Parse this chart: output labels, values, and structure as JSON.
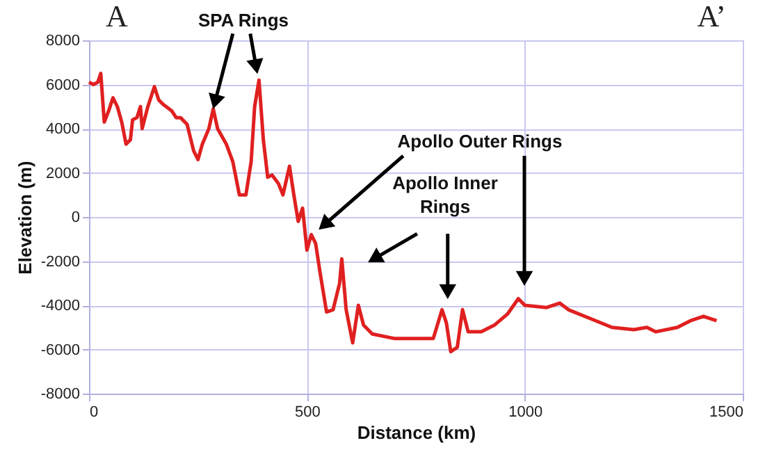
{
  "chart_data": {
    "type": "line",
    "xlabel": "Distance (km)",
    "ylabel": "Elevation (m)",
    "xlim": [
      0,
      1500
    ],
    "xticks": [
      0,
      500,
      1000,
      1500
    ],
    "ylim": [
      -8000,
      8000
    ],
    "yticks": [
      -8000,
      -6000,
      -4000,
      -2000,
      0,
      2000,
      4000,
      6000,
      8000
    ],
    "grid": true,
    "marker": "none",
    "line_style": "solid",
    "x": [
      0,
      10,
      20,
      27,
      35,
      45,
      55,
      65,
      75,
      85,
      95,
      100,
      110,
      118,
      122,
      135,
      150,
      160,
      170,
      190,
      200,
      210,
      225,
      240,
      250,
      260,
      275,
      285,
      295,
      315,
      330,
      345,
      360,
      372,
      380,
      390,
      400,
      410,
      420,
      435,
      445,
      460,
      470,
      480,
      490,
      500,
      510,
      520,
      530,
      545,
      560,
      575,
      580,
      590,
      605,
      618,
      630,
      650,
      700,
      750,
      790,
      810,
      820,
      830,
      845,
      857,
      870,
      900,
      930,
      960,
      985,
      1000,
      1050,
      1080,
      1100,
      1150,
      1200,
      1250,
      1280,
      1300,
      1350,
      1380,
      1410,
      1440
    ],
    "series": [
      {
        "color": "#e02020",
        "values": [
          6100,
          6000,
          6100,
          6500,
          4300,
          4800,
          5400,
          5000,
          4300,
          3300,
          3500,
          4400,
          4500,
          5000,
          4000,
          5000,
          5900,
          5300,
          5100,
          4800,
          4500,
          4500,
          4200,
          3000,
          2600,
          3300,
          4000,
          4900,
          4000,
          3300,
          2500,
          1000,
          1000,
          2500,
          5000,
          6200,
          3500,
          1800,
          1900,
          1500,
          1000,
          2300,
          1000,
          -200,
          400,
          -1500,
          -800,
          -1200,
          -2500,
          -4300,
          -4200,
          -3000,
          -1900,
          -4200,
          -5700,
          -4000,
          -4900,
          -5300,
          -5500,
          -5500,
          -5500,
          -4200,
          -4800,
          -6100,
          -5900,
          -4200,
          -5200,
          -5200,
          -4900,
          -4400,
          -3700,
          -4000,
          -4100,
          -3900,
          -4200,
          -4600,
          -5000,
          -5100,
          -5000,
          -5200,
          -5000,
          -4700,
          -4500,
          -4700
        ]
      }
    ],
    "annotations": [
      "A",
      "A’",
      {
        "text": "SPA Rings",
        "x": 285,
        "y": 4900
      },
      "Apollo Outer Rings",
      "Apollo Inner Rings"
    ]
  }
}
